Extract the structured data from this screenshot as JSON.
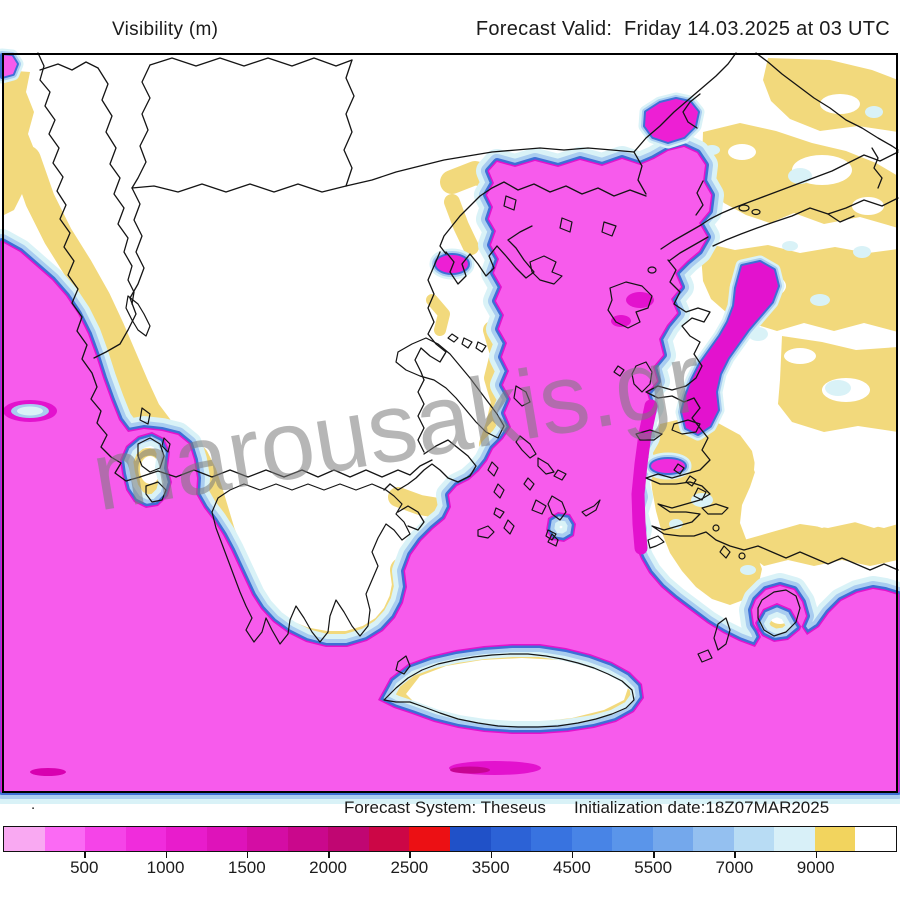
{
  "header": {
    "product_label": "Visibility (m)",
    "valid_label": "Forecast Valid:  Friday 14.03.2025 at 03 UTC"
  },
  "footer": {
    "system_label": "Forecast System: Theseus",
    "init_label": "Initialization date:18Z07MAR2025",
    "stray_dot": "."
  },
  "watermark": {
    "text": "marousakis.gr"
  },
  "colorbar": {
    "title_units": "m",
    "total_slots": 22,
    "segment_colors": [
      "#F9A9F2",
      "#FB6AF4",
      "#F544E8",
      "#F02CDC",
      "#E81CCC",
      "#DE13BA",
      "#D40DA4",
      "#CA088C",
      "#C00672",
      "#CC0646",
      "#EC1014",
      "#2051C8",
      "#2C62D6",
      "#3873E0",
      "#4884E6",
      "#5A95EA",
      "#74A8EC",
      "#94C0F0",
      "#B8DCF4",
      "#D8F0F8",
      "#F2D45E",
      "#FFFFFF"
    ],
    "labeled_boundary_slots": [
      2,
      4,
      6,
      8,
      10,
      12,
      14,
      16,
      18,
      20
    ],
    "tick_labels": [
      "500",
      "1000",
      "1500",
      "2000",
      "2500",
      "3500",
      "4500",
      "5500",
      "7000",
      "9000"
    ]
  },
  "palette": {
    "sea_fog_magenta": "#F75BEC",
    "deep_fog_magenta": "#E312CE",
    "rim_royal_blue": "#3E6FD6",
    "rim_light_blue": "#A9CDF0",
    "rim_pale_cyan": "#D9F2F7",
    "high_visibility_yellow": "#F2D97C",
    "coastline_black": "#141414",
    "watermark_gray": "rgba(122,122,122,0.55)"
  }
}
